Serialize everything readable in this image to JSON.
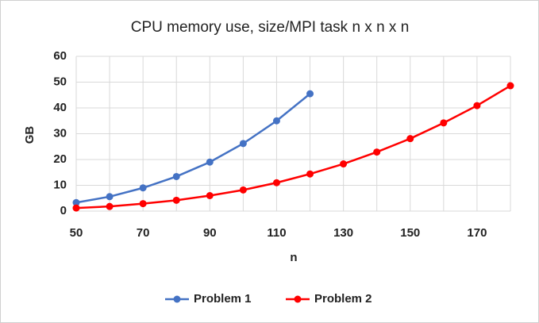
{
  "chart_data": {
    "type": "line",
    "title": "CPU memory use, size/MPI task n x n x n",
    "x_label": "n",
    "y_label": "GB",
    "xlim": [
      50,
      180
    ],
    "xticks": [
      50,
      70,
      90,
      110,
      130,
      150,
      170
    ],
    "xgrid": [
      60,
      80,
      100,
      120,
      140,
      160,
      180
    ],
    "ylim": [
      0,
      60
    ],
    "yticks": [
      0,
      10,
      20,
      30,
      40,
      50,
      60
    ],
    "grid": true,
    "legend": "bottom",
    "series": [
      {
        "name": "Problem 1",
        "color": "#4472c4",
        "x": [
          50,
          60,
          70,
          80,
          90,
          100,
          110,
          120
        ],
        "values": [
          3.3,
          5.6,
          9,
          13.4,
          19,
          26.2,
          35,
          45.5
        ]
      },
      {
        "name": "Problem 2",
        "color": "#ff0000",
        "x": [
          50,
          60,
          70,
          80,
          90,
          100,
          110,
          120,
          130,
          140,
          150,
          160,
          170,
          180
        ],
        "values": [
          1.2,
          1.8,
          2.9,
          4.2,
          6,
          8.2,
          11,
          14.4,
          18.3,
          22.9,
          28.1,
          34.2,
          40.9,
          48.6
        ]
      }
    ]
  }
}
